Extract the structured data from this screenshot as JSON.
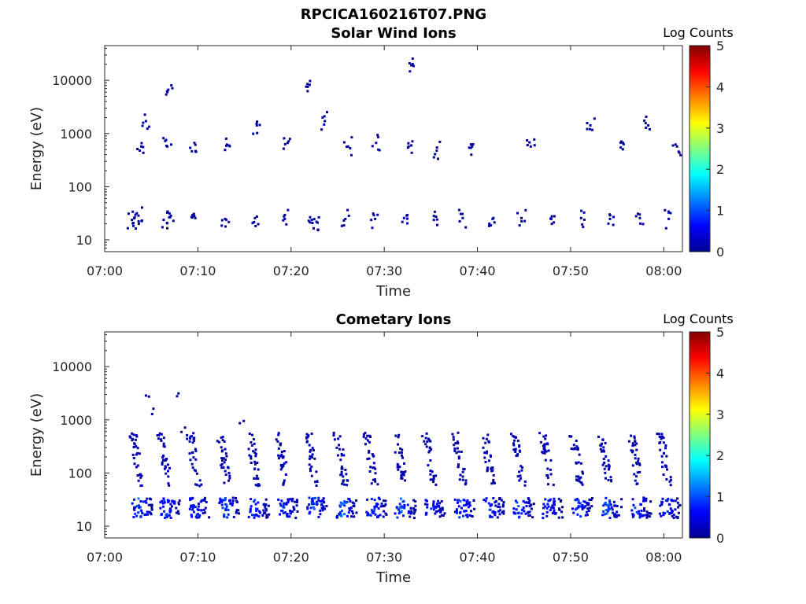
{
  "figure_title": "RPCICA160216T07.PNG",
  "colormap": [
    "#00008f",
    "#0000ff",
    "#0080ff",
    "#00ffff",
    "#80ff80",
    "#ffff00",
    "#ff8000",
    "#ff0000",
    "#800000"
  ],
  "chart_data": [
    {
      "type": "heatmap",
      "title": "Solar Wind Ions",
      "xlabel": "Time",
      "ylabel": "Energy (eV)",
      "x_ticks": [
        "07:00",
        "07:10",
        "07:20",
        "07:30",
        "07:40",
        "07:50",
        "08:00"
      ],
      "xlim_minutes": [
        0,
        62
      ],
      "y_ticks": [
        "10",
        "100",
        "1000",
        "10000"
      ],
      "y_scale": "log",
      "ylim": [
        6,
        45000
      ],
      "colorbar": {
        "label": "Log Counts",
        "ticks": [
          "0",
          "1",
          "2",
          "3",
          "4",
          "5"
        ],
        "range": [
          0,
          5
        ]
      },
      "points": [
        {
          "t": 2.8,
          "e": 25,
          "c": 0.1
        },
        {
          "t": 3.1,
          "e": 28,
          "c": 0.1
        },
        {
          "t": 3.5,
          "e": 30,
          "c": 0.1
        },
        {
          "t": 6.2,
          "e": 25,
          "c": 0.1
        },
        {
          "t": 6.8,
          "e": 28,
          "c": 0.1
        },
        {
          "t": 9.6,
          "e": 27,
          "c": 0.1
        },
        {
          "t": 12.8,
          "e": 26,
          "c": 0.1
        },
        {
          "t": 16.0,
          "e": 27,
          "c": 0.1
        },
        {
          "t": 19.2,
          "e": 26,
          "c": 0.1
        },
        {
          "t": 22.1,
          "e": 25,
          "c": 0.1
        },
        {
          "t": 22.6,
          "e": 23,
          "c": 0.1
        },
        {
          "t": 25.7,
          "e": 26,
          "c": 0.1
        },
        {
          "t": 28.9,
          "e": 26,
          "c": 0.1
        },
        {
          "t": 32.0,
          "e": 27,
          "c": 0.1
        },
        {
          "t": 35.2,
          "e": 25,
          "c": 0.1
        },
        {
          "t": 38.3,
          "e": 27,
          "c": 0.1
        },
        {
          "t": 41.5,
          "e": 26,
          "c": 0.1
        },
        {
          "t": 44.6,
          "e": 27,
          "c": 0.1
        },
        {
          "t": 47.8,
          "e": 26,
          "c": 0.1
        },
        {
          "t": 51.0,
          "e": 27,
          "c": 0.1
        },
        {
          "t": 54.1,
          "e": 26,
          "c": 0.1
        },
        {
          "t": 57.3,
          "e": 27,
          "c": 0.1
        },
        {
          "t": 60.4,
          "e": 26,
          "c": 0.1
        },
        {
          "t": 3.8,
          "e": 600,
          "c": 0.1
        },
        {
          "t": 4.3,
          "e": 1800,
          "c": 0.1
        },
        {
          "t": 6.6,
          "e": 600,
          "c": 0.1
        },
        {
          "t": 9.5,
          "e": 700,
          "c": 0.1
        },
        {
          "t": 13.0,
          "e": 650,
          "c": 0.1
        },
        {
          "t": 16.2,
          "e": 1500,
          "c": 0.1
        },
        {
          "t": 19.5,
          "e": 700,
          "c": 0.1
        },
        {
          "t": 23.5,
          "e": 1800,
          "c": 0.1
        },
        {
          "t": 26.0,
          "e": 600,
          "c": 0.1
        },
        {
          "t": 29.0,
          "e": 700,
          "c": 0.1
        },
        {
          "t": 32.5,
          "e": 600,
          "c": 0.1
        },
        {
          "t": 35.5,
          "e": 500,
          "c": 0.1
        },
        {
          "t": 39.3,
          "e": 600,
          "c": 0.1
        },
        {
          "t": 45.6,
          "e": 600,
          "c": 0.1
        },
        {
          "t": 52.0,
          "e": 1500,
          "c": 0.1
        },
        {
          "t": 55.5,
          "e": 700,
          "c": 0.1
        },
        {
          "t": 58.2,
          "e": 1500,
          "c": 0.1
        },
        {
          "t": 61.3,
          "e": 600,
          "c": 0.1
        },
        {
          "t": 6.7,
          "e": 7000,
          "c": 0.1
        },
        {
          "t": 21.5,
          "e": 8000,
          "c": 0.1
        },
        {
          "t": 32.6,
          "e": 22000,
          "c": 0.1
        }
      ]
    },
    {
      "type": "heatmap",
      "title": "Cometary Ions",
      "xlabel": "Time",
      "ylabel": "Energy (eV)",
      "x_ticks": [
        "07:00",
        "07:10",
        "07:20",
        "07:30",
        "07:40",
        "07:50",
        "08:00"
      ],
      "xlim_minutes": [
        0,
        62
      ],
      "y_ticks": [
        "10",
        "100",
        "1000",
        "10000"
      ],
      "y_scale": "log",
      "ylim": [
        6,
        45000
      ],
      "colorbar": {
        "label": "Log Counts",
        "ticks": [
          "0",
          "1",
          "2",
          "3",
          "4",
          "5"
        ],
        "range": [
          0,
          5
        ]
      },
      "bursts": [
        {
          "t": 3.5,
          "peak": 1.3
        },
        {
          "t": 6.5,
          "peak": 1.1
        },
        {
          "t": 9.6,
          "peak": 1.0
        },
        {
          "t": 12.8,
          "peak": 1.2
        },
        {
          "t": 16.0,
          "peak": 1.1
        },
        {
          "t": 19.1,
          "peak": 1.0
        },
        {
          "t": 22.3,
          "peak": 1.2
        },
        {
          "t": 25.4,
          "peak": 1.4
        },
        {
          "t": 28.6,
          "peak": 1.1
        },
        {
          "t": 31.7,
          "peak": 1.3
        },
        {
          "t": 34.9,
          "peak": 1.0
        },
        {
          "t": 38.1,
          "peak": 1.1
        },
        {
          "t": 41.2,
          "peak": 1.0
        },
        {
          "t": 44.4,
          "peak": 1.2
        },
        {
          "t": 47.5,
          "peak": 0.9
        },
        {
          "t": 50.7,
          "peak": 1.1
        },
        {
          "t": 53.8,
          "peak": 1.3
        },
        {
          "t": 57.0,
          "peak": 1.2
        },
        {
          "t": 60.1,
          "peak": 1.0
        }
      ],
      "points": [
        {
          "t": 4.3,
          "e": 3000,
          "c": 0.1
        },
        {
          "t": 5.1,
          "e": 1700,
          "c": 0.1
        },
        {
          "t": 7.8,
          "e": 3300,
          "c": 0.1
        },
        {
          "t": 8.5,
          "e": 750,
          "c": 0.1
        },
        {
          "t": 14.8,
          "e": 1000,
          "c": 0.1
        }
      ]
    }
  ]
}
